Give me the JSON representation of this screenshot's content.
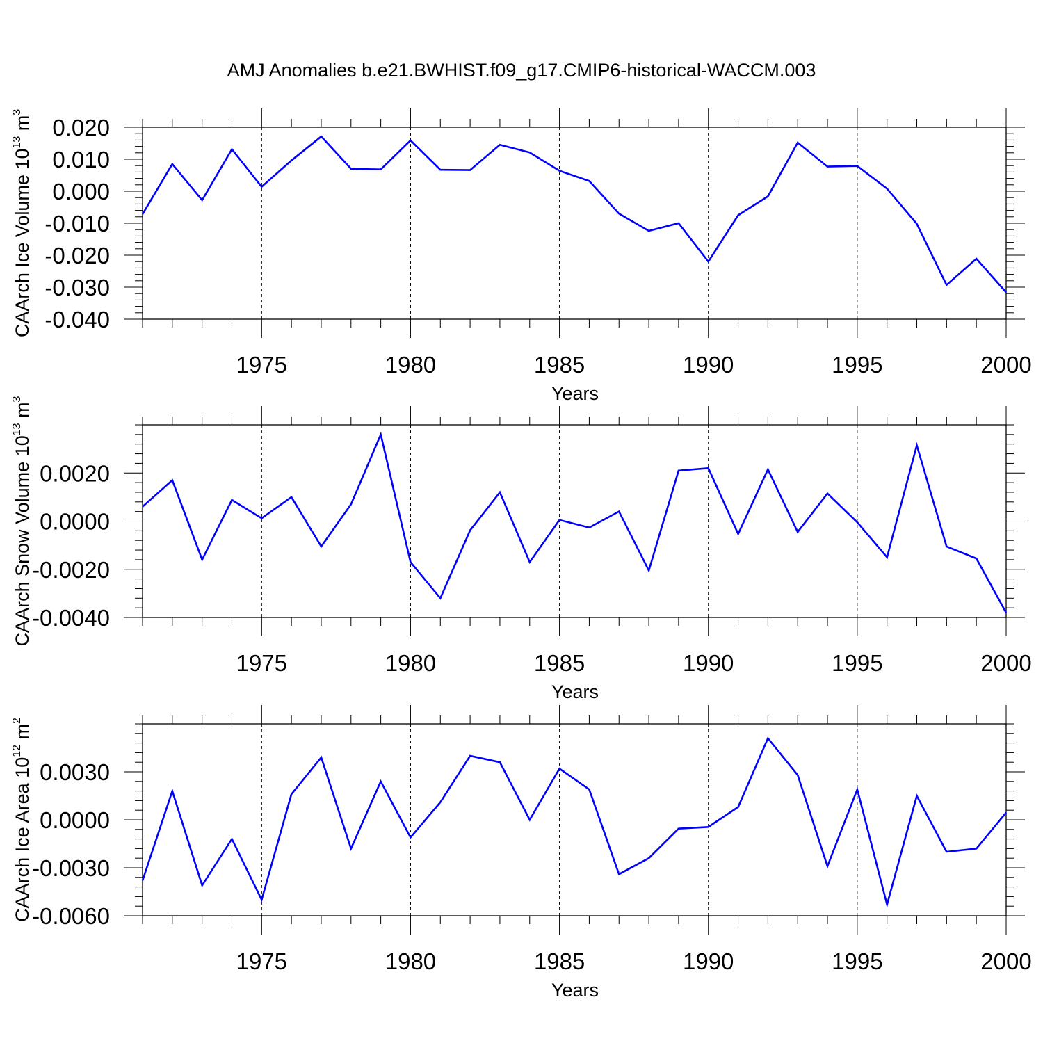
{
  "title": "AMJ Anomalies b.e21.BWHIST.f09_g17.CMIP6-historical-WACCM.003",
  "line_color": "#0000ff",
  "chart_data": [
    {
      "type": "line",
      "ylabel": {
        "text": "CAArch Ice Volume 10",
        "sup": "13",
        "unit": " m",
        "unit_sup": "3"
      },
      "xlabel": "Years",
      "xlim": [
        1971,
        2000
      ],
      "ylim": [
        -0.04,
        0.02
      ],
      "yticks": [
        -0.04,
        -0.03,
        -0.02,
        -0.01,
        0.0,
        0.01,
        0.02
      ],
      "ytick_labels": [
        "-0.040",
        "-0.030",
        "-0.020",
        "-0.010",
        "0.000",
        "0.010",
        "0.020"
      ],
      "xticks": [
        1975,
        1980,
        1985,
        1990,
        1995,
        2000
      ],
      "xtick_labels": [
        "1975",
        "1980",
        "1985",
        "1990",
        "1995",
        "2000"
      ],
      "x": [
        1971,
        1972,
        1973,
        1974,
        1975,
        1976,
        1977,
        1978,
        1979,
        1980,
        1981,
        1982,
        1983,
        1984,
        1985,
        1986,
        1987,
        1988,
        1989,
        1990,
        1991,
        1992,
        1993,
        1994,
        1995,
        1996,
        1997,
        1998,
        1999,
        2000
      ],
      "values": [
        -0.0072,
        0.0085,
        -0.0028,
        0.0131,
        0.0014,
        0.0096,
        0.0171,
        0.007,
        0.0068,
        0.0159,
        0.0067,
        0.0066,
        0.0145,
        0.0121,
        0.0064,
        0.0032,
        -0.007,
        -0.0124,
        -0.01,
        -0.022,
        -0.0075,
        -0.0016,
        0.0152,
        0.0077,
        0.0079,
        0.0008,
        -0.0102,
        -0.0293,
        -0.0211,
        -0.0316
      ]
    },
    {
      "type": "line",
      "ylabel": {
        "text": "CAArch Snow Volume 10",
        "sup": "13",
        "unit": " m",
        "unit_sup": "3"
      },
      "xlabel": "Years",
      "xlim": [
        1971,
        2000
      ],
      "ylim": [
        -0.004,
        0.004
      ],
      "yticks": [
        -0.004,
        -0.002,
        0.0,
        0.002
      ],
      "ytick_labels": [
        "-0.0040",
        "-0.0020",
        "0.0000",
        "0.0020"
      ],
      "xticks": [
        1975,
        1980,
        1985,
        1990,
        1995,
        2000
      ],
      "xtick_labels": [
        "1975",
        "1980",
        "1985",
        "1990",
        "1995",
        "2000"
      ],
      "x": [
        1971,
        1972,
        1973,
        1974,
        1975,
        1976,
        1977,
        1978,
        1979,
        1980,
        1981,
        1982,
        1983,
        1984,
        1985,
        1986,
        1987,
        1988,
        1989,
        1990,
        1991,
        1992,
        1993,
        1994,
        1995,
        1996,
        1997,
        1998,
        1999,
        2000
      ],
      "values": [
        0.0006,
        0.0017,
        -0.0016,
        0.00088,
        0.00012,
        0.001,
        -0.00105,
        0.0007,
        0.0036,
        -0.0017,
        -0.0032,
        -0.00038,
        0.0012,
        -0.0017,
        5e-05,
        -0.00027,
        0.0004,
        -0.00205,
        0.0021,
        0.0022,
        -0.00053,
        0.00215,
        -0.00045,
        0.00115,
        -5e-05,
        -0.0015,
        0.00315,
        -0.00105,
        -0.00155,
        -0.0038
      ]
    },
    {
      "type": "line",
      "ylabel": {
        "text": "CAArch Ice Area 10",
        "sup": "12",
        "unit": " m",
        "unit_sup": "2"
      },
      "xlabel": "Years",
      "xlim": [
        1971,
        2000
      ],
      "ylim": [
        -0.006,
        0.006
      ],
      "yticks": [
        -0.006,
        -0.003,
        0.0,
        0.003
      ],
      "ytick_labels": [
        "-0.0060",
        "-0.0030",
        "0.0000",
        "0.0030"
      ],
      "xticks": [
        1975,
        1980,
        1985,
        1990,
        1995,
        2000
      ],
      "xtick_labels": [
        "1975",
        "1980",
        "1985",
        "1990",
        "1995",
        "2000"
      ],
      "x": [
        1971,
        1972,
        1973,
        1974,
        1975,
        1976,
        1977,
        1978,
        1979,
        1980,
        1981,
        1982,
        1983,
        1984,
        1985,
        1986,
        1987,
        1988,
        1989,
        1990,
        1991,
        1992,
        1993,
        1994,
        1995,
        1996,
        1997,
        1998,
        1999,
        2000
      ],
      "values": [
        -0.0038,
        0.0018,
        -0.0041,
        -0.0012,
        -0.005,
        0.0016,
        0.0039,
        -0.0018,
        0.0024,
        -0.0011,
        0.0011,
        0.004,
        0.0036,
        0.0,
        0.0032,
        0.0019,
        -0.0034,
        -0.0024,
        -0.00055,
        -0.00045,
        0.0008,
        0.0051,
        0.0028,
        -0.0029,
        0.0019,
        -0.0053,
        0.0015,
        -0.002,
        -0.0018,
        0.00045
      ]
    }
  ]
}
